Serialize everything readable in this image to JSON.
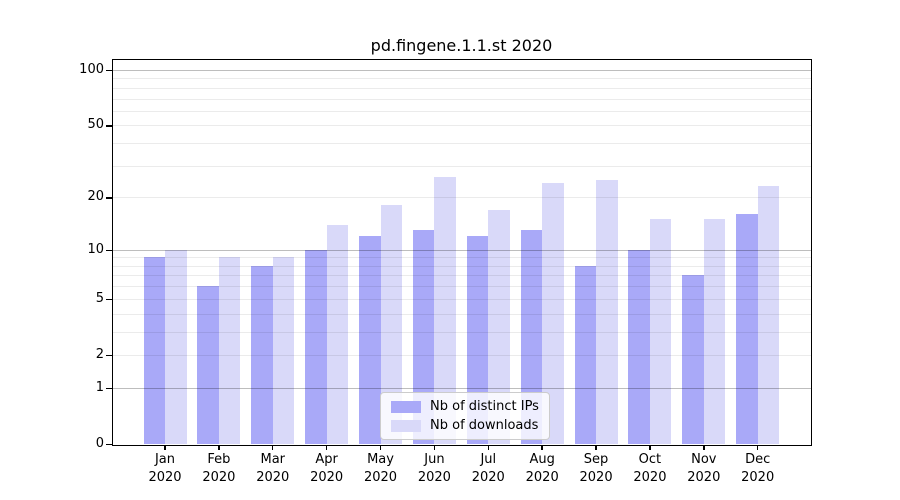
{
  "chart_data": {
    "type": "bar",
    "title": "pd.fingene.1.1.st 2020",
    "categories": [
      "Jan 2020",
      "Feb 2020",
      "Mar 2020",
      "Apr 2020",
      "May 2020",
      "Jun 2020",
      "Jul 2020",
      "Aug 2020",
      "Sep 2020",
      "Oct 2020",
      "Nov 2020",
      "Dec 2020"
    ],
    "series": [
      {
        "name": "Nb of distinct IPs",
        "color": "#a9a9f8",
        "values": [
          9,
          6,
          8,
          10,
          12,
          13,
          12,
          13,
          8,
          10,
          7,
          16
        ]
      },
      {
        "name": "Nb of downloads",
        "color": "#d9d9f9",
        "values": [
          10,
          9,
          9,
          14,
          18,
          26,
          17,
          24,
          25,
          15,
          15,
          23
        ]
      }
    ],
    "xlabel": "",
    "ylabel": "",
    "yscale": "log1p",
    "ylim": [
      0,
      113.2
    ],
    "yticks": [
      0,
      1,
      2,
      5,
      10,
      20,
      50,
      100
    ],
    "grid": {
      "major": [
        1,
        10,
        100
      ],
      "minor": [
        2,
        3,
        4,
        5,
        6,
        7,
        8,
        9,
        20,
        30,
        40,
        50,
        60,
        70,
        80,
        90
      ]
    },
    "legend_position": "lower center",
    "grid_on": true
  },
  "colors": {
    "axis": "#000000",
    "major_grid": "rgba(0,0,0,0.26)",
    "minor_grid": "rgba(0,0,0,0.08)",
    "legend_border": "#cccccc"
  }
}
